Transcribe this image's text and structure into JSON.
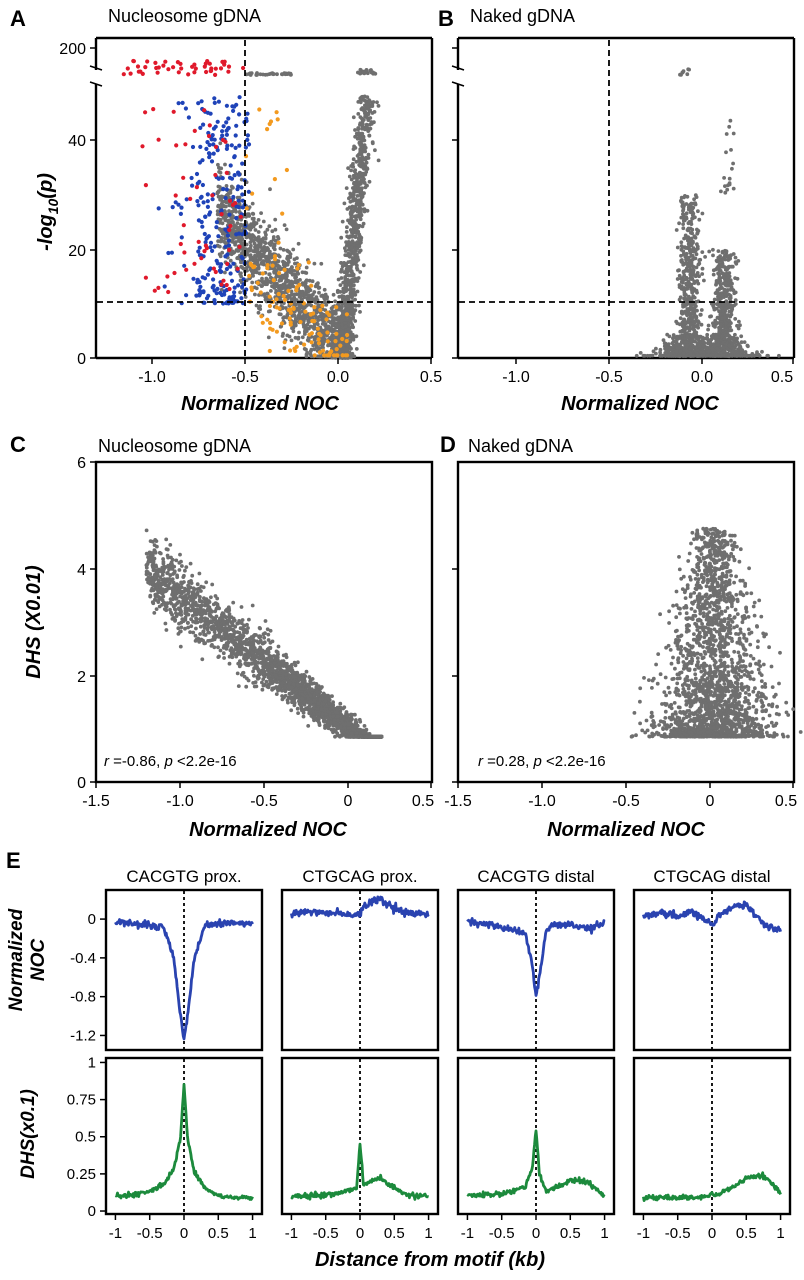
{
  "panel_labels": {
    "A": "A",
    "B": "B",
    "C": "C",
    "D": "D",
    "E": "E"
  },
  "titles": {
    "A": "Nucleosome gDNA",
    "B": "Naked gDNA",
    "C": "Nucleosome gDNA",
    "D": "Naked gDNA",
    "E1": "CACGTG prox.",
    "E2": "CTGCAG prox.",
    "E3": "CACGTG distal",
    "E4": "CTGCAG distal"
  },
  "axis_labels": {
    "noc": "Normalized NOC",
    "log_p_main": "-log",
    "log_p_sub": "10",
    "log_p_tail": "(p)",
    "dhs_cd": "DHS (X0.01)",
    "noc_e_line1": "Normalized",
    "noc_e_line2": "NOC",
    "dhs_e": "DHS(x0.1)",
    "distance": "Distance from motif (kb)"
  },
  "annotations": {
    "C_r": "r",
    "C_mid": " =-0.86, ",
    "C_p": "p",
    "C_tail": " <2.2e-16",
    "D_r": "r",
    "D_mid": " =0.28, ",
    "D_p": "p",
    "D_tail": " <2.2e-16"
  },
  "colors": {
    "gray": "#6f6f6f",
    "red": "#e0192b",
    "blue": "#1f43b8",
    "orange": "#f39a1f",
    "line_blue": "#2a43b0",
    "line_green": "#1c8a3c"
  },
  "chart_data": [
    {
      "panel": "A",
      "type": "scatter",
      "title": "Nucleosome gDNA",
      "xlabel": "Normalized NOC",
      "ylabel": "-log10(p)",
      "xlim": [
        -1.3,
        0.5
      ],
      "ylim": [
        0,
        220
      ],
      "x_ticks": [
        "-1.0",
        "-0.5",
        "0.0",
        "0.5"
      ],
      "y_ticks": [
        "0",
        "20",
        "40",
        "200"
      ],
      "y_axis_break": "between 50 and ~190",
      "reference_lines": {
        "x": -0.5,
        "y": 10
      },
      "series": [
        {
          "color": "gray",
          "description": "V-shaped cloud: lower-left arm from (-0.6, 25) to (0.0, 0); steep right arm up to (0.15, 48); tail up to 200 near x = 0.1-0.2"
        },
        {
          "color": "red",
          "x_range": [
            -1.15,
            -0.5
          ],
          "y_range": [
            10,
            220
          ]
        },
        {
          "color": "blue",
          "x_range": [
            -1.1,
            -0.5
          ],
          "y_range": [
            10,
            50
          ]
        },
        {
          "color": "orange",
          "x_range": [
            -0.5,
            0.05
          ],
          "y_range": [
            0,
            200
          ]
        }
      ]
    },
    {
      "panel": "B",
      "type": "scatter",
      "title": "Naked gDNA",
      "xlabel": "Normalized NOC",
      "xlim": [
        -1.3,
        0.5
      ],
      "ylim": [
        0,
        220
      ],
      "x_ticks": [
        "-1.0",
        "-0.5",
        "0.0",
        "0.5"
      ],
      "reference_lines": {
        "x": -0.5,
        "y": 10
      },
      "series": [
        {
          "color": "gray",
          "description": "two narrow vertical clusters centered near x = -0.05 (up to y = 200) and x = 0.15 (up to y = 45), base near y = 0-5"
        }
      ]
    },
    {
      "panel": "C",
      "type": "scatter",
      "title": "Nucleosome gDNA",
      "xlabel": "Normalized NOC",
      "ylabel": "DHS (X0.01)",
      "xlim": [
        -1.5,
        0.5
      ],
      "ylim": [
        0,
        6
      ],
      "x_ticks": [
        "-1.5",
        "-1.0",
        "-0.5",
        "0",
        "0.5"
      ],
      "y_ticks": [
        "0",
        "2",
        "4",
        "6"
      ],
      "annotation": "r =-0.86, p <2.2e-16",
      "series": [
        {
          "color": "gray",
          "description": "negative trend from (-1.2, 4.6) to (0.2, 1.0)"
        }
      ]
    },
    {
      "panel": "D",
      "type": "scatter",
      "title": "Naked gDNA",
      "xlabel": "Normalized NOC",
      "xlim": [
        -1.5,
        0.5
      ],
      "ylim": [
        0,
        6
      ],
      "x_ticks": [
        "-1.5",
        "-1.0",
        "-0.5",
        "0",
        "0.5"
      ],
      "annotation": "r =0.28, p <2.2e-16",
      "series": [
        {
          "color": "gray",
          "description": "vertical cluster centred near x = 0, y from 0.8 to 4.8"
        }
      ]
    },
    {
      "panel": "E",
      "type": "line",
      "xlabel": "Distance from motif (kb)",
      "x": [
        -1.0,
        -0.75,
        -0.5,
        -0.3,
        -0.15,
        -0.05,
        0.0,
        0.05,
        0.15,
        0.3,
        0.5,
        0.75,
        1.0
      ],
      "x_ticks": [
        "-1",
        "-0.5",
        "0",
        "0.5",
        "1"
      ],
      "noc_ylim": [
        -1.35,
        0.3
      ],
      "noc_y_ticks": [
        "0",
        "-0.4",
        "-0.8",
        "-1.2"
      ],
      "dhs_ylim": [
        -0.02,
        1.03
      ],
      "dhs_y_ticks": [
        "0",
        "0.25",
        "0.5",
        "0.75",
        "1"
      ],
      "subplots": [
        {
          "title": "CACGTG prox.",
          "noc": [
            -0.02,
            -0.04,
            -0.07,
            -0.08,
            -0.4,
            -1.0,
            -1.25,
            -1.0,
            -0.4,
            -0.06,
            -0.05,
            -0.04,
            -0.04
          ],
          "dhs": [
            0.1,
            0.11,
            0.13,
            0.18,
            0.28,
            0.5,
            0.85,
            0.5,
            0.26,
            0.16,
            0.1,
            0.09,
            0.09
          ]
        },
        {
          "title": "CTGCAG prox.",
          "noc": [
            0.05,
            0.08,
            0.06,
            0.07,
            0.04,
            0.06,
            0.05,
            0.12,
            0.18,
            0.2,
            0.1,
            0.06,
            0.05
          ],
          "dhs": [
            0.1,
            0.1,
            0.11,
            0.12,
            0.14,
            0.16,
            0.45,
            0.18,
            0.2,
            0.22,
            0.15,
            0.1,
            0.1
          ]
        },
        {
          "title": "CACGTG distal",
          "noc": [
            -0.02,
            -0.05,
            -0.08,
            -0.12,
            -0.15,
            -0.5,
            -0.8,
            -0.6,
            -0.1,
            -0.05,
            -0.06,
            -0.1,
            -0.04
          ],
          "dhs": [
            0.1,
            0.11,
            0.12,
            0.14,
            0.17,
            0.3,
            0.55,
            0.25,
            0.13,
            0.16,
            0.21,
            0.2,
            0.1
          ]
        },
        {
          "title": "CTGCAG distal",
          "noc": [
            0.04,
            0.06,
            0.02,
            0.08,
            0.0,
            -0.03,
            -0.05,
            -0.02,
            0.08,
            0.12,
            0.15,
            -0.05,
            -0.1
          ],
          "dhs": [
            0.09,
            0.09,
            0.09,
            0.09,
            0.09,
            0.1,
            0.12,
            0.1,
            0.12,
            0.16,
            0.22,
            0.24,
            0.12
          ]
        }
      ]
    }
  ]
}
